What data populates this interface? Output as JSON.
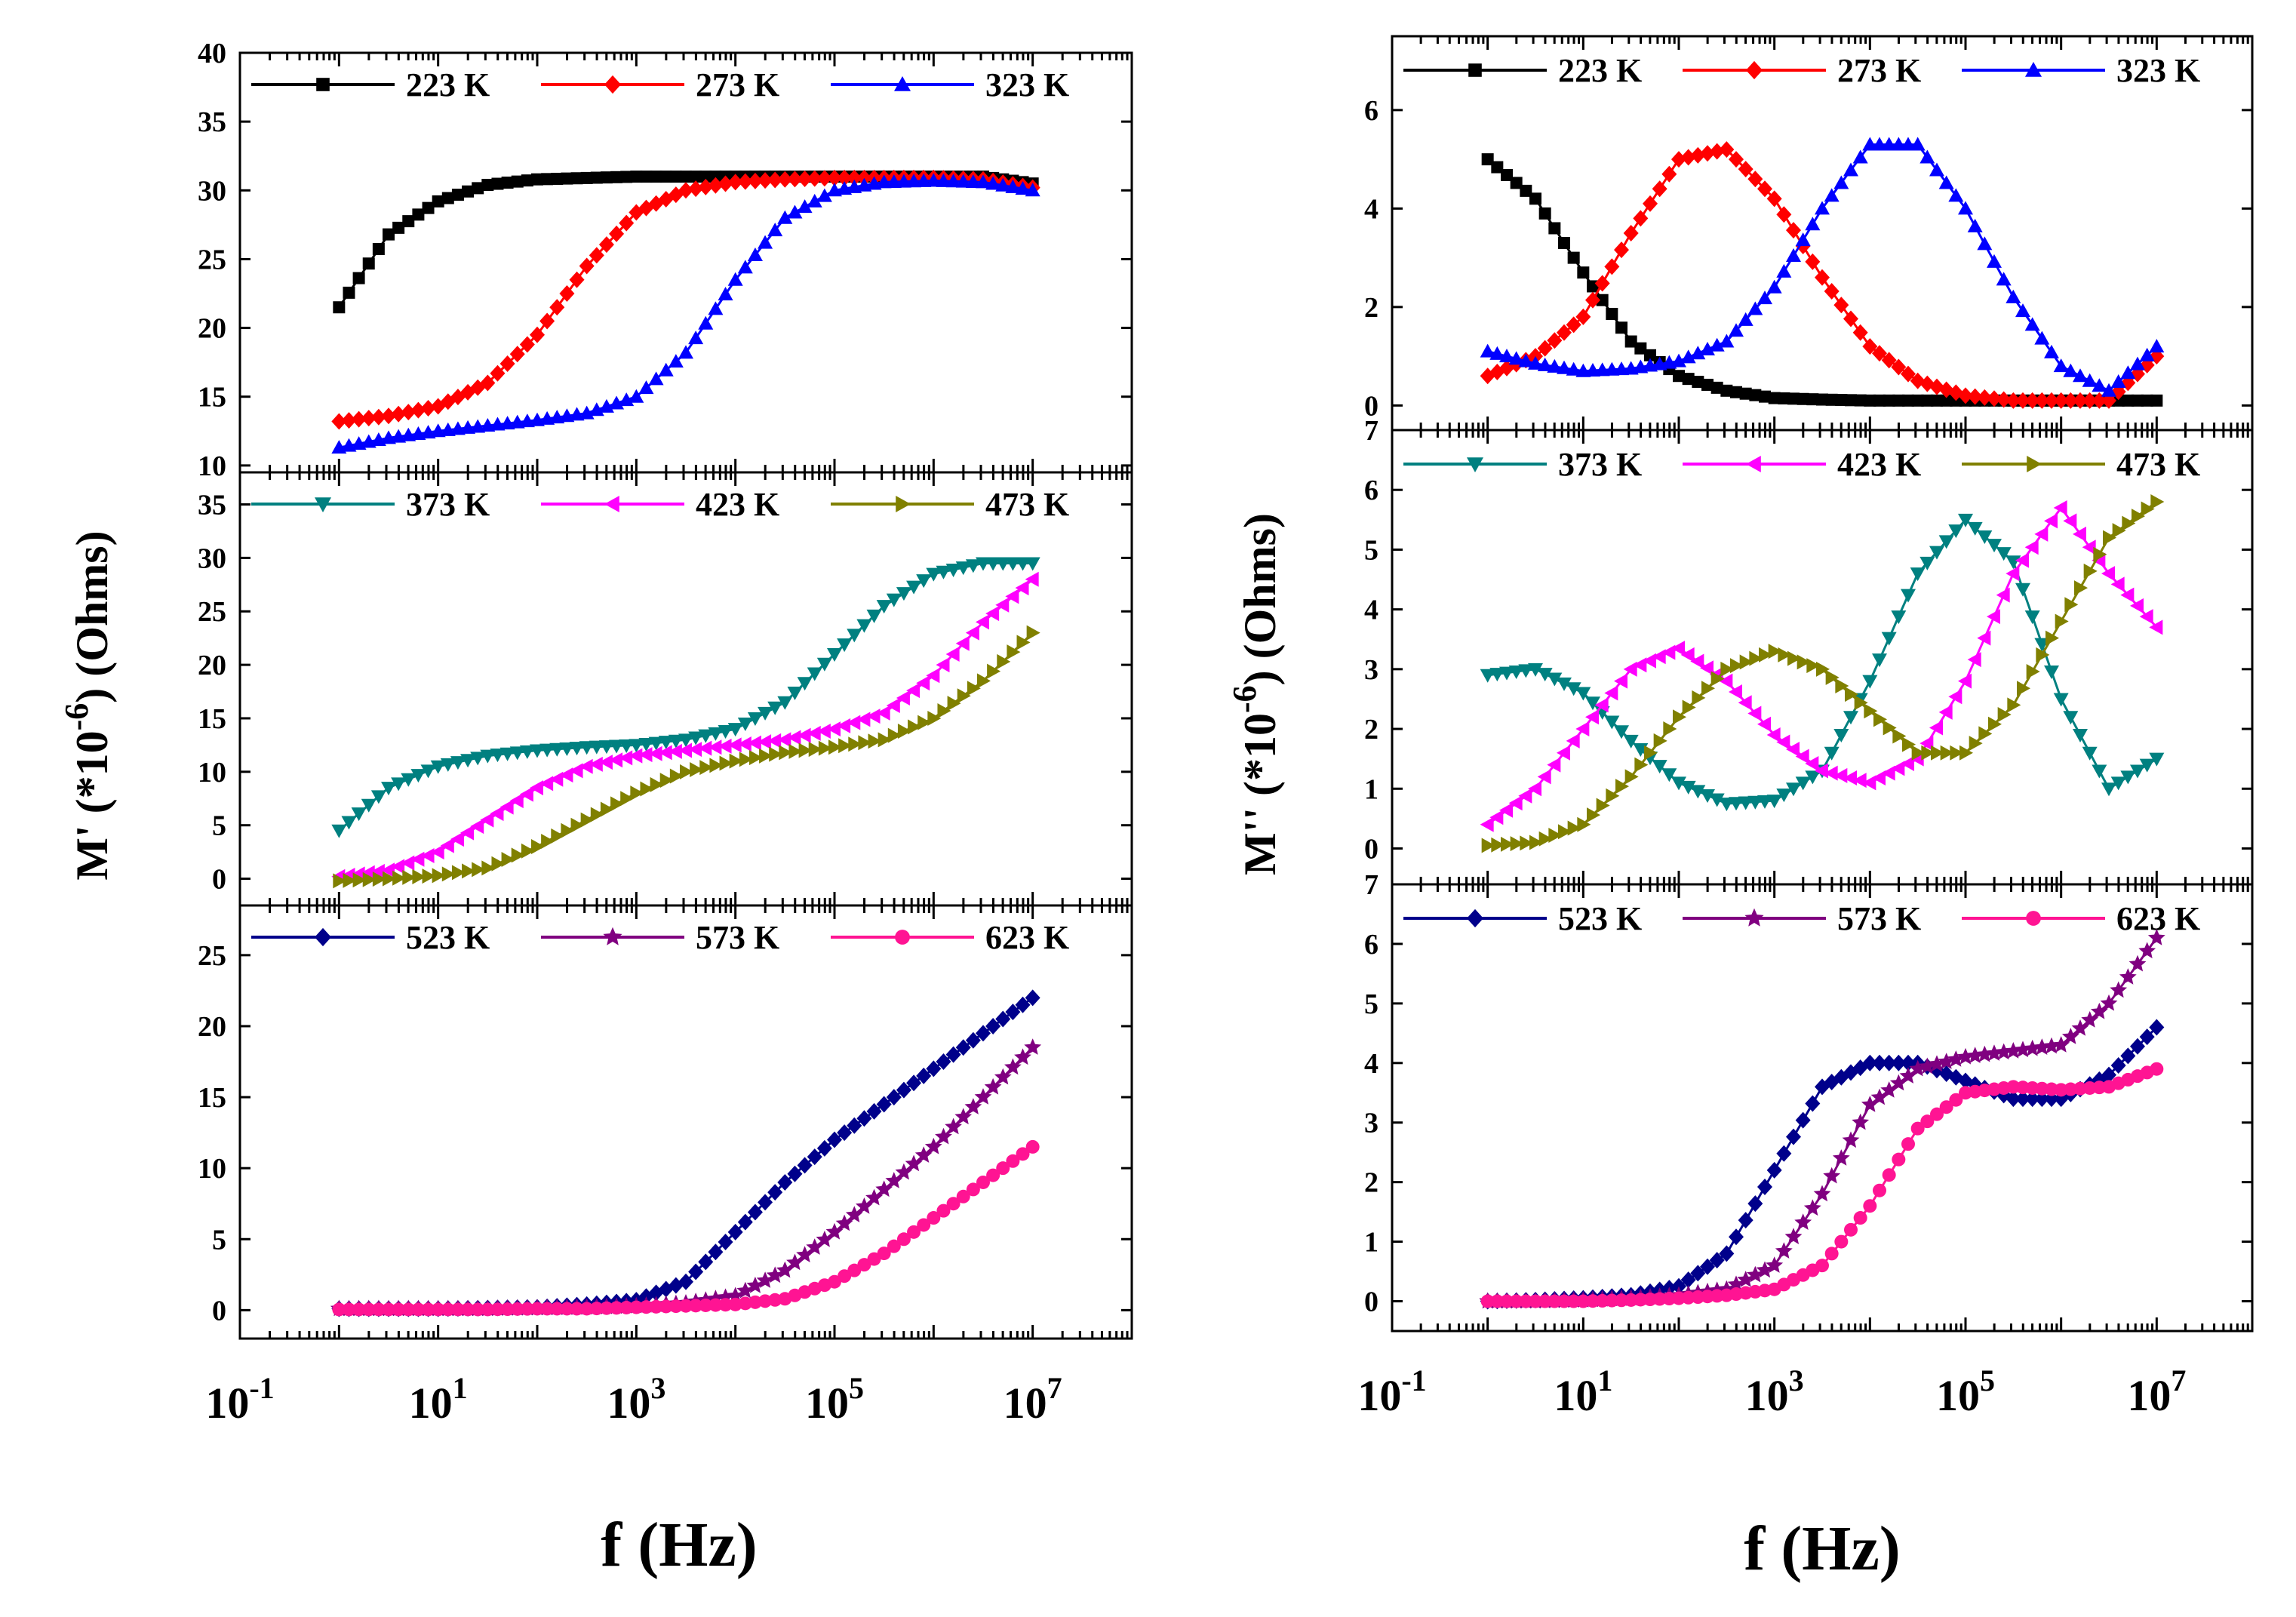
{
  "figure": {
    "x_axis_title": "f (Hz)",
    "left_y_title": "M' (*10",
    "right_y_title": "M'' (*10",
    "y_title_exponent": "-6",
    "y_title_units": ") (Ohms)"
  },
  "chart_data": [
    {
      "id": "Mprime-low",
      "type": "scatter",
      "column": "left",
      "ylabel": "M' (*10^-6) (Ohms)",
      "xlabel": "f (Hz)",
      "xscale": "log",
      "xlim": [
        0.1,
        100000000
      ],
      "ylim": [
        9.5,
        40
      ],
      "yticks": [
        10,
        15,
        20,
        25,
        30,
        35,
        40
      ],
      "xticks": [],
      "legend": "top",
      "series": [
        {
          "name": "223 K",
          "label": "223 K",
          "color": "#000000",
          "marker": "square",
          "logx": [
            0,
            0.5,
            1,
            1.5,
            2,
            2.5,
            3,
            3.5,
            4,
            4.5,
            5,
            5.5,
            6,
            6.5,
            7
          ],
          "y": [
            21.5,
            26.8,
            29.2,
            30.4,
            30.8,
            30.9,
            31.0,
            31.0,
            31.0,
            31.0,
            31.0,
            31.0,
            31.0,
            31.0,
            30.5
          ]
        },
        {
          "name": "273 K",
          "label": "273 K",
          "color": "#ff0000",
          "marker": "diamond",
          "logx": [
            0,
            0.5,
            1,
            1.5,
            2,
            2.5,
            3,
            3.5,
            4,
            4.5,
            5,
            5.5,
            6,
            6.5,
            7
          ],
          "y": [
            13.2,
            13.6,
            14.3,
            16.0,
            19.5,
            24.5,
            28.4,
            30.0,
            30.6,
            30.8,
            30.9,
            30.9,
            30.9,
            30.8,
            30.2
          ]
        },
        {
          "name": "323 K",
          "label": "323 K",
          "color": "#0000ff",
          "marker": "triangle",
          "logx": [
            0,
            0.5,
            1,
            1.5,
            2,
            2.5,
            3,
            3.5,
            4,
            4.5,
            5,
            5.5,
            6,
            6.5,
            7
          ],
          "y": [
            11.3,
            12.0,
            12.5,
            12.9,
            13.3,
            13.8,
            15.0,
            18.2,
            23.5,
            28.0,
            30.0,
            30.6,
            30.7,
            30.6,
            30.0
          ]
        }
      ]
    },
    {
      "id": "Mprime-mid",
      "type": "scatter",
      "column": "left",
      "xscale": "log",
      "xlim": [
        0.1,
        100000000
      ],
      "ylim": [
        -2.5,
        38
      ],
      "yticks": [
        0,
        5,
        10,
        15,
        20,
        25,
        30,
        35
      ],
      "xticks": [],
      "legend": "top",
      "series": [
        {
          "name": "373 K",
          "label": "373 K",
          "color": "#008080",
          "marker": "triangle-down",
          "logx": [
            0,
            0.5,
            1,
            1.5,
            2,
            2.5,
            3,
            3.5,
            4,
            4.5,
            5,
            5.5,
            6,
            6.5,
            7
          ],
          "y": [
            4.5,
            8.5,
            10.5,
            11.5,
            12.0,
            12.3,
            12.5,
            13.0,
            14.0,
            16.5,
            21.0,
            25.5,
            28.5,
            29.5,
            29.5
          ]
        },
        {
          "name": "423 K",
          "label": "423 K",
          "color": "#ff00ff",
          "marker": "triangle-left",
          "logx": [
            0,
            0.5,
            1,
            1.5,
            2,
            2.5,
            3,
            3.5,
            4,
            4.5,
            5,
            5.5,
            6,
            6.5,
            7
          ],
          "y": [
            0.2,
            0.8,
            2.5,
            5.5,
            8.5,
            10.5,
            11.5,
            12.0,
            12.5,
            13.0,
            14.0,
            15.5,
            19.0,
            24.0,
            28.0
          ]
        },
        {
          "name": "473 K",
          "label": "473 K",
          "color": "#808000",
          "marker": "triangle-right",
          "logx": [
            0,
            0.5,
            1,
            1.5,
            2,
            2.5,
            3,
            3.5,
            4,
            4.5,
            5,
            5.5,
            6,
            6.5,
            7
          ],
          "y": [
            -0.2,
            0.0,
            0.3,
            1.0,
            3.0,
            5.5,
            8.0,
            10.0,
            11.0,
            11.8,
            12.3,
            13.0,
            15.0,
            18.5,
            23.0
          ]
        }
      ]
    },
    {
      "id": "Mprime-high",
      "type": "scatter",
      "column": "left",
      "xscale": "log",
      "xlim": [
        0.1,
        100000000
      ],
      "ylim": [
        -2,
        28.5
      ],
      "yticks": [
        0,
        5,
        10,
        15,
        20,
        25
      ],
      "xticks": [
        "10-1",
        "101",
        "103",
        "105",
        "107"
      ],
      "legend": "top",
      "series": [
        {
          "name": "523 K",
          "label": "523 K",
          "color": "#00008b",
          "marker": "diamond",
          "logx": [
            0,
            0.5,
            1,
            1.5,
            2,
            2.5,
            3,
            3.5,
            4,
            4.5,
            5,
            5.5,
            6,
            6.5,
            7
          ],
          "y": [
            0.1,
            0.1,
            0.1,
            0.15,
            0.2,
            0.4,
            0.7,
            2.0,
            5.5,
            9.0,
            12.0,
            14.5,
            17.0,
            19.5,
            22.0
          ]
        },
        {
          "name": "573 K",
          "label": "573 K",
          "color": "#800080",
          "marker": "star",
          "logx": [
            0,
            0.5,
            1,
            1.5,
            2,
            2.5,
            3,
            3.5,
            4,
            4.5,
            5,
            5.5,
            6,
            6.5,
            7
          ],
          "y": [
            0.1,
            0.1,
            0.1,
            0.1,
            0.15,
            0.2,
            0.3,
            0.5,
            1.0,
            2.8,
            5.5,
            8.5,
            11.5,
            15.0,
            18.5
          ]
        },
        {
          "name": "623 K",
          "label": "623 K",
          "color": "#ff1493",
          "marker": "circle",
          "logx": [
            0,
            0.5,
            1,
            1.5,
            2,
            2.5,
            3,
            3.5,
            4,
            4.5,
            5,
            5.5,
            6,
            6.5,
            7
          ],
          "y": [
            0.05,
            0.05,
            0.05,
            0.05,
            0.1,
            0.1,
            0.2,
            0.3,
            0.4,
            0.8,
            2.0,
            4.0,
            6.5,
            9.0,
            11.5
          ]
        }
      ]
    },
    {
      "id": "Mdoubleprime-low",
      "type": "scatter",
      "column": "right",
      "ylabel": "M'' (*10^-6) (Ohms)",
      "xlabel": "f (Hz)",
      "xscale": "log",
      "xlim": [
        0.1,
        100000000
      ],
      "ylim": [
        -0.5,
        7.5
      ],
      "yticks": [
        0,
        2,
        4,
        6
      ],
      "xticks": [],
      "legend": "top",
      "series": [
        {
          "name": "223 K",
          "label": "223 K",
          "color": "#000000",
          "marker": "square",
          "logx": [
            0,
            0.5,
            1,
            1.5,
            2,
            2.5,
            3,
            3.5,
            4,
            4.5,
            5,
            5.5,
            6,
            6.5,
            7
          ],
          "y": [
            5.0,
            4.2,
            2.7,
            1.3,
            0.6,
            0.3,
            0.15,
            0.12,
            0.1,
            0.1,
            0.1,
            0.1,
            0.1,
            0.1,
            0.1
          ]
        },
        {
          "name": "273 K",
          "label": "273 K",
          "color": "#ff0000",
          "marker": "diamond",
          "logx": [
            0,
            0.5,
            1,
            1.5,
            2,
            2.5,
            3,
            3.5,
            4,
            4.5,
            5,
            5.5,
            6,
            6.5,
            7
          ],
          "y": [
            0.6,
            1.0,
            1.8,
            3.5,
            5.0,
            5.2,
            4.2,
            2.6,
            1.2,
            0.5,
            0.2,
            0.1,
            0.1,
            0.1,
            1.0
          ]
        },
        {
          "name": "323 K",
          "label": "323 K",
          "color": "#0000ff",
          "marker": "triangle",
          "logx": [
            0,
            0.5,
            1,
            1.5,
            2,
            2.5,
            3,
            3.5,
            4,
            4.5,
            5,
            5.5,
            6,
            6.5,
            7
          ],
          "y": [
            1.1,
            0.85,
            0.7,
            0.75,
            0.9,
            1.3,
            2.4,
            4.0,
            5.3,
            5.3,
            4.0,
            2.2,
            0.8,
            0.3,
            1.2
          ]
        }
      ]
    },
    {
      "id": "Mdoubleprime-mid",
      "type": "scatter",
      "column": "right",
      "xscale": "log",
      "xlim": [
        0.1,
        100000000
      ],
      "ylim": [
        -0.6,
        7
      ],
      "yticks": [
        0,
        1,
        2,
        3,
        4,
        5,
        6,
        7
      ],
      "xticks": [],
      "legend": "top",
      "series": [
        {
          "name": "373 K",
          "label": "373 K",
          "color": "#008080",
          "marker": "triangle-down",
          "logx": [
            0,
            0.5,
            1,
            1.5,
            2,
            2.5,
            3,
            3.5,
            4,
            4.5,
            5,
            5.5,
            6,
            6.5,
            7
          ],
          "y": [
            2.9,
            3.0,
            2.6,
            1.8,
            1.1,
            0.75,
            0.8,
            1.3,
            2.8,
            4.6,
            5.5,
            4.8,
            2.5,
            1.0,
            1.5
          ]
        },
        {
          "name": "423 K",
          "label": "423 K",
          "color": "#ff00ff",
          "marker": "triangle-left",
          "logx": [
            0,
            0.5,
            1,
            1.5,
            2,
            2.5,
            3,
            3.5,
            4,
            4.5,
            5,
            5.5,
            6,
            6.5,
            7
          ],
          "y": [
            0.4,
            1.0,
            2.0,
            3.0,
            3.35,
            2.8,
            1.9,
            1.3,
            1.1,
            1.5,
            2.8,
            4.6,
            5.7,
            4.6,
            3.7
          ]
        },
        {
          "name": "473 K",
          "label": "473 K",
          "color": "#808000",
          "marker": "triangle-right",
          "logx": [
            0,
            0.5,
            1,
            1.5,
            2,
            2.5,
            3,
            3.5,
            4,
            4.5,
            5,
            5.5,
            6,
            6.5,
            7
          ],
          "y": [
            0.05,
            0.1,
            0.4,
            1.2,
            2.2,
            3.0,
            3.3,
            3.0,
            2.3,
            1.6,
            1.6,
            2.4,
            3.8,
            5.2,
            5.8
          ]
        }
      ]
    },
    {
      "id": "Mdoubleprime-high",
      "type": "scatter",
      "column": "right",
      "xscale": "log",
      "xlim": [
        0.1,
        100000000
      ],
      "ylim": [
        -0.5,
        7
      ],
      "yticks": [
        0,
        1,
        2,
        3,
        4,
        5,
        6,
        7
      ],
      "xticks": [
        "10-1",
        "101",
        "103",
        "105",
        "107"
      ],
      "legend": "top",
      "series": [
        {
          "name": "523 K",
          "label": "523 K",
          "color": "#00008b",
          "marker": "diamond",
          "logx": [
            0,
            0.5,
            1,
            1.5,
            2,
            2.5,
            3,
            3.5,
            4,
            4.5,
            5,
            5.5,
            6,
            6.5,
            7
          ],
          "y": [
            0.0,
            0.02,
            0.05,
            0.1,
            0.25,
            0.8,
            2.2,
            3.6,
            4.0,
            4.0,
            3.7,
            3.4,
            3.4,
            3.8,
            4.6
          ]
        },
        {
          "name": "573 K",
          "label": "573 K",
          "color": "#800080",
          "marker": "star",
          "logx": [
            0,
            0.5,
            1,
            1.5,
            2,
            2.5,
            3,
            3.5,
            4,
            4.5,
            5,
            5.5,
            6,
            6.5,
            7
          ],
          "y": [
            0.0,
            0.0,
            0.02,
            0.05,
            0.1,
            0.2,
            0.6,
            1.8,
            3.3,
            3.9,
            4.1,
            4.2,
            4.3,
            5.0,
            6.1
          ]
        },
        {
          "name": "623 K",
          "label": "623 K",
          "color": "#ff1493",
          "marker": "circle",
          "logx": [
            0,
            0.5,
            1,
            1.5,
            2,
            2.5,
            3,
            3.5,
            4,
            4.5,
            5,
            5.5,
            6,
            6.5,
            7
          ],
          "y": [
            0.0,
            0.0,
            0.0,
            0.02,
            0.05,
            0.1,
            0.2,
            0.6,
            1.6,
            2.9,
            3.5,
            3.6,
            3.55,
            3.6,
            3.9
          ]
        }
      ]
    }
  ]
}
